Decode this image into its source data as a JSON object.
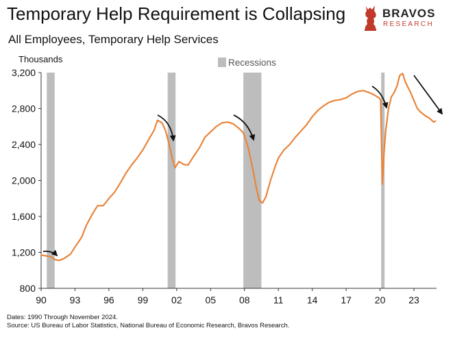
{
  "header": {
    "title": "Temporary Help Requirement is Collapsing",
    "subtitle": "All Employees, Temporary Help Services"
  },
  "brand": {
    "name": "BRAVOS",
    "tagline": "RESEARCH",
    "icon": "bull-chess-piece-icon",
    "accent_color": "#c0392b"
  },
  "footer": {
    "dates": "Dates: 1990 Through November 2024.",
    "source": "Source: US Bureau of Labor Statistics, National Bureau of Economic Research, Bravos Research."
  },
  "chart_data": {
    "type": "line",
    "title": "Temporary Help Requirement is Collapsing",
    "subtitle": "All Employees, Temporary Help Services",
    "ylabel": "Thousands",
    "xlabel": "",
    "ylim": [
      800,
      3200
    ],
    "xlim": [
      1990,
      2025
    ],
    "y_ticks": [
      800,
      1200,
      1600,
      2000,
      2400,
      2800,
      3200
    ],
    "y_tick_labels": [
      "800",
      "1,200",
      "1,600",
      "2,000",
      "2,400",
      "2,800",
      "3,200"
    ],
    "x_ticks": [
      1990,
      1993,
      1996,
      1999,
      2002,
      2005,
      2008,
      2011,
      2014,
      2017,
      2020,
      2023
    ],
    "x_tick_labels": [
      "90",
      "93",
      "96",
      "99",
      "02",
      "05",
      "08",
      "11",
      "14",
      "17",
      "20",
      "23"
    ],
    "grid": false,
    "legend": {
      "entries": [
        "Recessions"
      ],
      "placement": "top-center"
    },
    "line_color": "#e8843a",
    "recession_color": "#bdbdbd",
    "recessions": [
      {
        "start": 1990.5,
        "end": 1991.2
      },
      {
        "start": 2001.2,
        "end": 2001.9
      },
      {
        "start": 2007.9,
        "end": 2009.5
      },
      {
        "start": 2020.1,
        "end": 2020.4
      }
    ],
    "series": [
      {
        "x": [
          1990.0,
          1990.5,
          1990.9,
          1991.2,
          1991.6,
          1992.0,
          1992.6,
          1993.0,
          1993.6,
          1994.0,
          1994.6,
          1995.0,
          1995.5,
          1996.0,
          1996.5,
          1997.0,
          1997.5,
          1998.0,
          1998.5,
          1999.0,
          1999.5,
          2000.0,
          2000.3,
          2000.7,
          2001.0,
          2001.3,
          2001.6,
          2001.85,
          2002.2,
          2002.6,
          2003.0,
          2003.5,
          2004.0,
          2004.5,
          2005.0,
          2005.5,
          2006.0,
          2006.5,
          2007.0,
          2007.5,
          2007.9,
          2008.3,
          2008.7,
          2009.0,
          2009.3,
          2009.6,
          2009.9,
          2010.3,
          2010.7,
          2011.0,
          2011.5,
          2012.0,
          2012.5,
          2013.0,
          2013.5,
          2014.0,
          2014.5,
          2015.0,
          2015.5,
          2016.0,
          2016.5,
          2017.0,
          2017.5,
          2018.0,
          2018.5,
          2019.0,
          2019.5,
          2019.9,
          2020.05,
          2020.2,
          2020.35,
          2020.5,
          2020.75,
          2021.0,
          2021.25,
          2021.5,
          2021.75,
          2022.0,
          2022.2,
          2022.45,
          2022.7,
          2023.0,
          2023.3,
          2023.6,
          2024.0,
          2024.4,
          2024.75,
          2024.9
        ],
        "y": [
          1170,
          1160,
          1150,
          1120,
          1110,
          1130,
          1180,
          1260,
          1370,
          1500,
          1640,
          1720,
          1720,
          1800,
          1870,
          1970,
          2080,
          2170,
          2250,
          2340,
          2450,
          2560,
          2670,
          2640,
          2560,
          2420,
          2250,
          2140,
          2210,
          2180,
          2170,
          2270,
          2360,
          2480,
          2540,
          2600,
          2640,
          2650,
          2630,
          2580,
          2530,
          2380,
          2150,
          1950,
          1780,
          1750,
          1820,
          2000,
          2150,
          2250,
          2340,
          2400,
          2480,
          2550,
          2620,
          2710,
          2780,
          2830,
          2870,
          2890,
          2900,
          2920,
          2960,
          2990,
          3000,
          2980,
          2950,
          2920,
          2900,
          1960,
          2300,
          2550,
          2800,
          2930,
          2980,
          3050,
          3170,
          3190,
          3110,
          3040,
          2980,
          2890,
          2800,
          2760,
          2720,
          2690,
          2650,
          2660
        ]
      }
    ],
    "annotations": [
      "trend-arrow-1990",
      "trend-arrow-2000",
      "trend-arrow-2007",
      "trend-arrow-2019",
      "trend-arrow-2023"
    ]
  }
}
